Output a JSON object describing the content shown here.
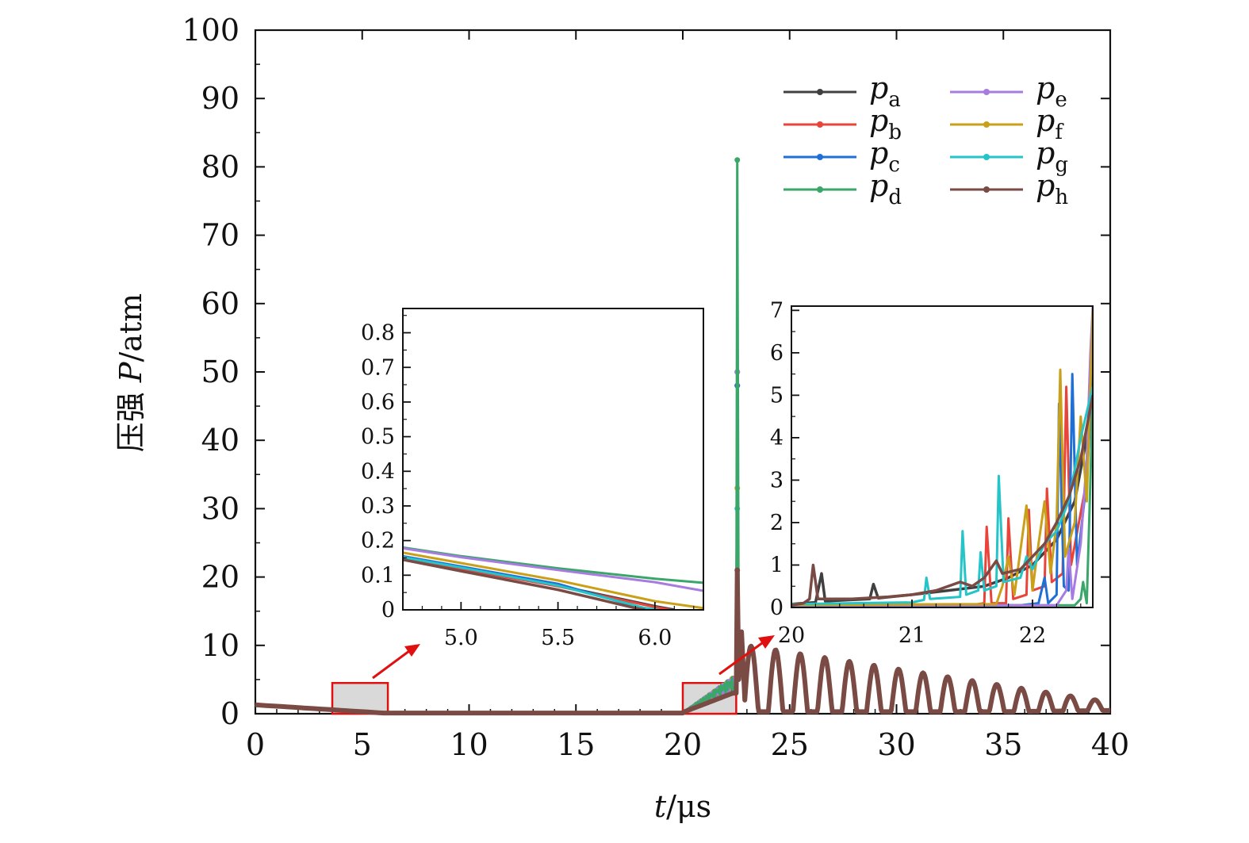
{
  "chart_data": [
    {
      "id": "main",
      "type": "line",
      "xlabel_var": "t",
      "xlabel_unit": "/μs",
      "ylabel_cn": "压强",
      "ylabel_var": "P",
      "ylabel_unit": "/atm",
      "xlim": [
        0,
        40
      ],
      "ylim": [
        0,
        100
      ],
      "xticks": [
        0,
        5,
        10,
        15,
        20,
        25,
        30,
        35,
        40
      ],
      "yticks": [
        0,
        10,
        20,
        30,
        40,
        50,
        60,
        70,
        80,
        90,
        100
      ],
      "highlight_regions": [
        {
          "x": [
            3.6,
            6.2
          ],
          "y": [
            0,
            4.5
          ]
        },
        {
          "x": [
            20.0,
            22.5
          ],
          "y": [
            0,
            4.5
          ]
        }
      ],
      "peak": {
        "t": 22.55,
        "values": {
          "a": 50,
          "b": 48,
          "c": 48,
          "d": 81,
          "e": 50,
          "f": 33,
          "g": 30,
          "h": 21
        }
      },
      "oscillation": {
        "t_start": 23.0,
        "t_end": 40.0,
        "period": 1.15,
        "amp_start": 7.5,
        "amp_end": 0.9,
        "base_start": 2.5,
        "base_end": 0.8
      },
      "series": [
        {
          "key": "a",
          "name": "p",
          "sub": "a",
          "color": "#404040"
        },
        {
          "key": "b",
          "name": "p",
          "sub": "b",
          "color": "#e8443a"
        },
        {
          "key": "c",
          "name": "p",
          "sub": "c",
          "color": "#1f6fd6"
        },
        {
          "key": "d",
          "name": "p",
          "sub": "d",
          "color": "#3aa66a"
        },
        {
          "key": "e",
          "name": "p",
          "sub": "e",
          "color": "#a87be0"
        },
        {
          "key": "f",
          "name": "p",
          "sub": "f",
          "color": "#c9a018"
        },
        {
          "key": "g",
          "name": "p",
          "sub": "g",
          "color": "#24c4c8"
        },
        {
          "key": "h",
          "name": "p",
          "sub": "h",
          "color": "#7a4a44"
        }
      ]
    },
    {
      "id": "inset1",
      "type": "line",
      "xlim": [
        4.7,
        6.25
      ],
      "ylim": [
        0,
        0.87
      ],
      "xticks": [
        5.0,
        5.5,
        6.0
      ],
      "xtick_labels": [
        "5.0",
        "5.5",
        "6.0"
      ],
      "yticks": [
        0,
        0.1,
        0.2,
        0.3,
        0.4,
        0.5,
        0.6,
        0.7,
        0.8
      ],
      "ytick_labels": [
        "0",
        "0.1",
        "0.2",
        "0.3",
        "0.4",
        "0.5",
        "0.6",
        "0.7",
        "0.8"
      ],
      "series": [
        {
          "key": "d",
          "points": [
            [
              4.7,
              0.18
            ],
            [
              5.0,
              0.155
            ],
            [
              5.5,
              0.12
            ],
            [
              6.0,
              0.09
            ],
            [
              6.25,
              0.078
            ]
          ]
        },
        {
          "key": "e",
          "points": [
            [
              4.7,
              0.178
            ],
            [
              5.0,
              0.152
            ],
            [
              5.5,
              0.115
            ],
            [
              6.0,
              0.08
            ],
            [
              6.25,
              0.055
            ]
          ]
        },
        {
          "key": "f",
          "points": [
            [
              4.7,
              0.165
            ],
            [
              5.0,
              0.135
            ],
            [
              5.5,
              0.085
            ],
            [
              6.0,
              0.025
            ],
            [
              6.25,
              0.005
            ]
          ]
        },
        {
          "key": "a",
          "points": [
            [
              4.7,
              0.15
            ],
            [
              5.0,
              0.12
            ],
            [
              5.5,
              0.07
            ],
            [
              6.0,
              0.01
            ],
            [
              6.1,
              0.0
            ]
          ]
        },
        {
          "key": "b",
          "points": [
            [
              4.7,
              0.148
            ],
            [
              5.0,
              0.118
            ],
            [
              5.5,
              0.068
            ],
            [
              6.0,
              0.008
            ],
            [
              6.08,
              0.0
            ]
          ]
        },
        {
          "key": "c",
          "points": [
            [
              4.7,
              0.155
            ],
            [
              5.0,
              0.125
            ],
            [
              5.5,
              0.075
            ],
            [
              5.9,
              0.01
            ],
            [
              6.0,
              0.0
            ]
          ]
        },
        {
          "key": "g",
          "points": [
            [
              4.7,
              0.152
            ],
            [
              5.0,
              0.122
            ],
            [
              5.5,
              0.07
            ],
            [
              5.95,
              0.005
            ],
            [
              6.02,
              0.0
            ]
          ]
        },
        {
          "key": "h",
          "points": [
            [
              4.7,
              0.145
            ],
            [
              5.0,
              0.112
            ],
            [
              5.5,
              0.058
            ],
            [
              5.9,
              0.005
            ],
            [
              5.95,
              0.0
            ]
          ]
        }
      ]
    },
    {
      "id": "inset2",
      "type": "line",
      "xlim": [
        20.0,
        22.5
      ],
      "ylim": [
        0,
        7.1
      ],
      "xticks": [
        20,
        21,
        22
      ],
      "xtick_labels": [
        "20",
        "21",
        "22"
      ],
      "yticks": [
        0,
        1,
        2,
        3,
        4,
        5,
        6,
        7
      ],
      "ytick_labels": [
        "0",
        "1",
        "2",
        "3",
        "4",
        "5",
        "6",
        "7"
      ],
      "series": [
        {
          "key": "a",
          "points": [
            [
              20.0,
              0.08
            ],
            [
              20.1,
              0.1
            ],
            [
              20.2,
              0.12
            ],
            [
              20.25,
              0.8
            ],
            [
              20.28,
              0.15
            ],
            [
              20.5,
              0.18
            ],
            [
              20.65,
              0.2
            ],
            [
              20.68,
              0.55
            ],
            [
              20.72,
              0.22
            ],
            [
              21.0,
              0.3
            ],
            [
              21.3,
              0.4
            ],
            [
              21.6,
              0.5
            ],
            [
              21.8,
              0.7
            ],
            [
              22.0,
              1.0
            ],
            [
              22.2,
              1.6
            ],
            [
              22.35,
              2.5
            ],
            [
              22.45,
              4.0
            ],
            [
              22.5,
              5.2
            ]
          ]
        },
        {
          "key": "b",
          "points": [
            [
              20.0,
              0.05
            ],
            [
              21.5,
              0.06
            ],
            [
              21.6,
              0.1
            ],
            [
              21.62,
              1.9
            ],
            [
              21.66,
              0.1
            ],
            [
              21.78,
              0.1
            ],
            [
              21.8,
              2.1
            ],
            [
              21.84,
              0.2
            ],
            [
              21.95,
              0.3
            ],
            [
              21.97,
              2.3
            ],
            [
              22.0,
              0.4
            ],
            [
              22.1,
              0.5
            ],
            [
              22.12,
              2.8
            ],
            [
              22.16,
              0.6
            ],
            [
              22.25,
              0.8
            ],
            [
              22.28,
              5.2
            ],
            [
              22.32,
              1.0
            ],
            [
              22.45,
              3.0
            ],
            [
              22.5,
              6.5
            ]
          ]
        },
        {
          "key": "c",
          "points": [
            [
              20.0,
              0.05
            ],
            [
              21.9,
              0.05
            ],
            [
              22.05,
              0.1
            ],
            [
              22.1,
              0.7
            ],
            [
              22.13,
              0.1
            ],
            [
              22.2,
              0.3
            ],
            [
              22.22,
              4.8
            ],
            [
              22.26,
              0.5
            ],
            [
              22.3,
              0.4
            ],
            [
              22.33,
              5.5
            ],
            [
              22.37,
              1.0
            ],
            [
              22.45,
              3.0
            ],
            [
              22.5,
              5.5
            ]
          ]
        },
        {
          "key": "d",
          "points": [
            [
              20.0,
              0.05
            ],
            [
              22.35,
              0.05
            ],
            [
              22.4,
              0.2
            ],
            [
              22.42,
              0.6
            ],
            [
              22.45,
              0.1
            ],
            [
              22.48,
              3.0
            ],
            [
              22.5,
              5.0
            ]
          ]
        },
        {
          "key": "e",
          "points": [
            [
              20.0,
              0.05
            ],
            [
              22.2,
              0.05
            ],
            [
              22.28,
              0.4
            ],
            [
              22.3,
              1.4
            ],
            [
              22.33,
              0.2
            ],
            [
              22.4,
              1.5
            ],
            [
              22.45,
              3.5
            ],
            [
              22.48,
              6.0
            ],
            [
              22.5,
              7.1
            ]
          ]
        },
        {
          "key": "f",
          "points": [
            [
              20.0,
              0.06
            ],
            [
              21.7,
              0.08
            ],
            [
              21.75,
              0.5
            ],
            [
              21.8,
              1.2
            ],
            [
              21.85,
              0.3
            ],
            [
              21.95,
              2.4
            ],
            [
              22.0,
              0.4
            ],
            [
              22.05,
              1.5
            ],
            [
              22.1,
              2.5
            ],
            [
              22.15,
              0.8
            ],
            [
              22.2,
              2.0
            ],
            [
              22.23,
              5.6
            ],
            [
              22.27,
              1.2
            ],
            [
              22.35,
              2.0
            ],
            [
              22.4,
              4.5
            ],
            [
              22.45,
              2.5
            ],
            [
              22.5,
              7.0
            ]
          ]
        },
        {
          "key": "g",
          "points": [
            [
              20.0,
              0.08
            ],
            [
              20.5,
              0.1
            ],
            [
              21.0,
              0.12
            ],
            [
              21.1,
              0.18
            ],
            [
              21.12,
              0.7
            ],
            [
              21.15,
              0.2
            ],
            [
              21.4,
              0.25
            ],
            [
              21.42,
              1.8
            ],
            [
              21.45,
              0.3
            ],
            [
              21.55,
              0.4
            ],
            [
              21.57,
              1.3
            ],
            [
              21.6,
              0.4
            ],
            [
              21.7,
              0.5
            ],
            [
              21.72,
              3.1
            ],
            [
              21.76,
              0.6
            ],
            [
              21.9,
              0.7
            ],
            [
              21.95,
              1.2
            ],
            [
              22.0,
              0.9
            ],
            [
              22.1,
              1.5
            ],
            [
              22.2,
              1.8
            ],
            [
              22.3,
              2.5
            ],
            [
              22.4,
              4.0
            ],
            [
              22.5,
              5.2
            ]
          ]
        },
        {
          "key": "h",
          "points": [
            [
              20.0,
              0.05
            ],
            [
              20.1,
              0.1
            ],
            [
              20.15,
              0.2
            ],
            [
              20.18,
              1.0
            ],
            [
              20.22,
              0.2
            ],
            [
              20.5,
              0.2
            ],
            [
              20.8,
              0.25
            ],
            [
              21.0,
              0.3
            ],
            [
              21.2,
              0.4
            ],
            [
              21.4,
              0.6
            ],
            [
              21.5,
              0.5
            ],
            [
              21.6,
              0.7
            ],
            [
              21.7,
              1.1
            ],
            [
              21.75,
              0.8
            ],
            [
              21.9,
              0.9
            ],
            [
              22.0,
              1.2
            ],
            [
              22.1,
              1.5
            ],
            [
              22.2,
              2.0
            ],
            [
              22.3,
              2.6
            ],
            [
              22.4,
              3.5
            ],
            [
              22.5,
              5.0
            ]
          ]
        }
      ]
    }
  ]
}
